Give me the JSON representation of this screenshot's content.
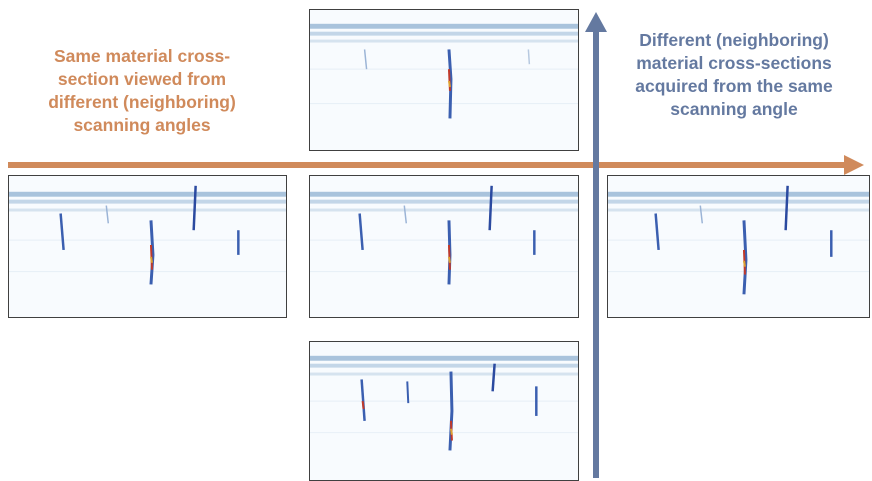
{
  "labels": {
    "horizontal_axis": "Same material cross-\nsection viewed from\ndifferent (neighboring)\nscanning angles",
    "vertical_axis": "Different (neighboring)\nmaterial cross-sections\nacquired from the same\nscanning angle"
  },
  "colors": {
    "horizontal_arrow": "#d08a5b",
    "vertical_arrow": "#6479a0",
    "scan_background": "#f8fbfe",
    "scan_band": "#a9c3dc",
    "flaw_core": "#1a3a9a",
    "flaw_hot": "#c0392b"
  },
  "panels": [
    {
      "id": "top-center",
      "description_icon": "ultrasound-scan-image"
    },
    {
      "id": "middle-left",
      "description_icon": "ultrasound-scan-image"
    },
    {
      "id": "middle-center",
      "description_icon": "ultrasound-scan-image"
    },
    {
      "id": "middle-right",
      "description_icon": "ultrasound-scan-image"
    },
    {
      "id": "bottom-center",
      "description_icon": "ultrasound-scan-image"
    }
  ]
}
